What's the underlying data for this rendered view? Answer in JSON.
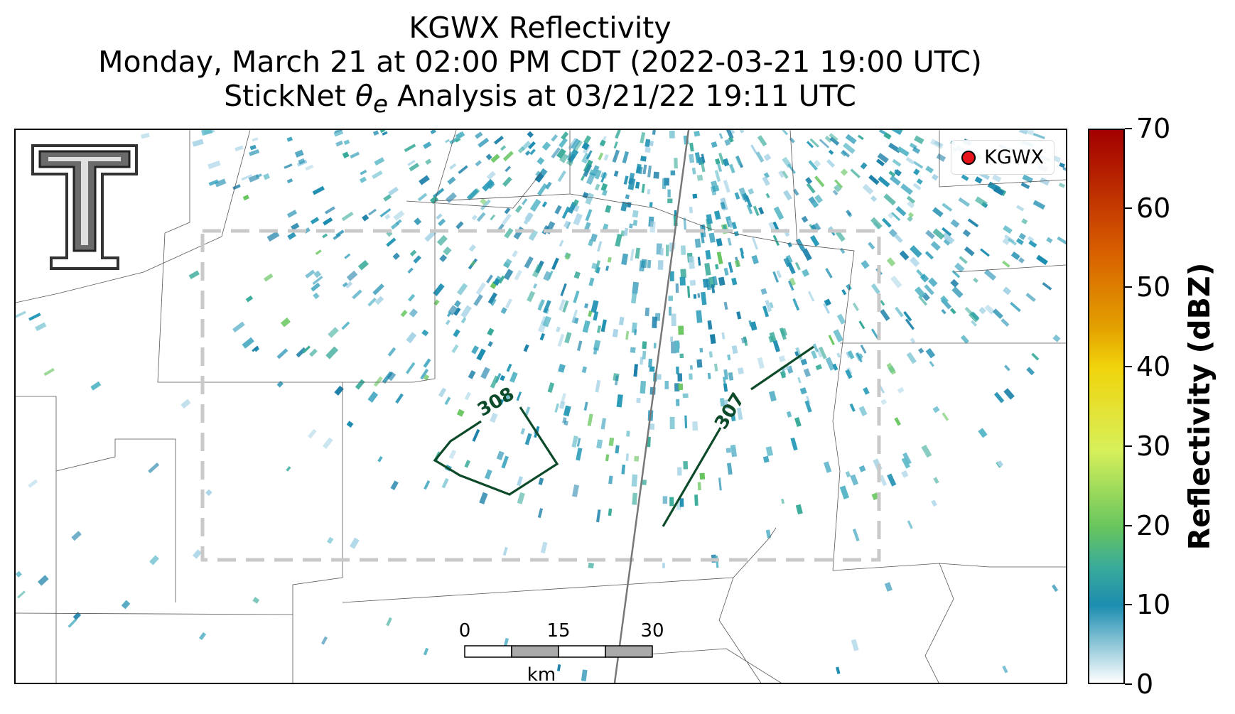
{
  "title": {
    "line1": "KGWX Reflectivity",
    "line2": "Monday, March 21 at 02:00 PM CDT (2022-03-21 19:00 UTC)",
    "line3_prefix": "StickNet ",
    "line3_theta": "θ",
    "line3_sub": "e",
    "line3_suffix": " Analysis at 03/21/22 19:11 UTC"
  },
  "legend": {
    "label": "KGWX",
    "marker_color": "#e8141b"
  },
  "contours": [
    {
      "label": "308",
      "color": "#0d4a2a"
    },
    {
      "label": "307",
      "color": "#0d4a2a"
    }
  ],
  "scalebar": {
    "ticks": [
      "0",
      "15",
      "30"
    ],
    "unit": "km"
  },
  "colorbar": {
    "title": "Reflectivity (dBZ)",
    "ticks": [
      "0",
      "10",
      "20",
      "30",
      "40",
      "50",
      "60",
      "70"
    ],
    "range": [
      0,
      70
    ],
    "colors": [
      "#ffffff",
      "#1c8db0",
      "#66c55e",
      "#d7f05a",
      "#f1d40c",
      "#e3a200",
      "#d85f00",
      "#a20000"
    ]
  },
  "logo": {
    "name": "texas-tech-double-t-logo"
  }
}
